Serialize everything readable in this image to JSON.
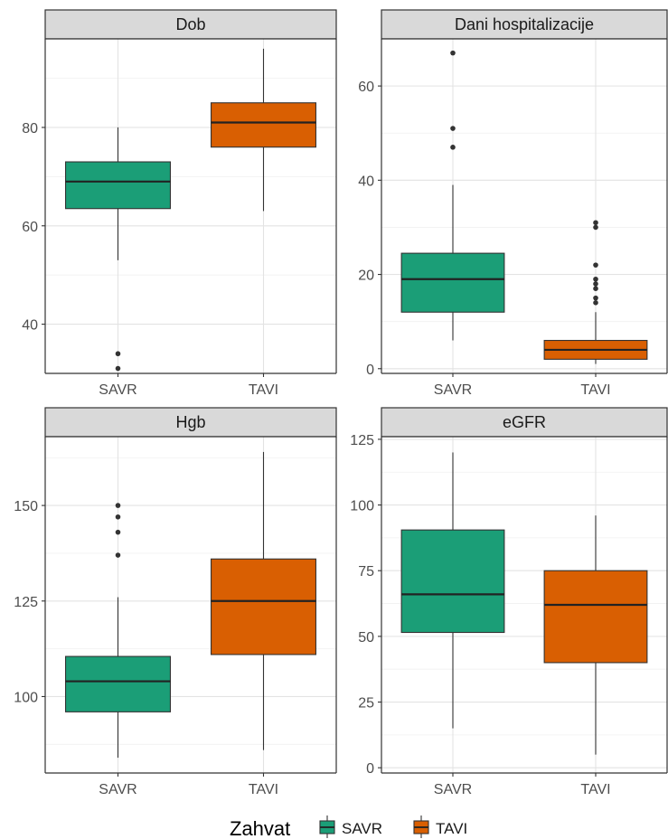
{
  "chart_data": {
    "type": "boxplot",
    "categories": [
      "SAVR",
      "TAVI"
    ],
    "colors": {
      "SAVR": "#1b9e77",
      "TAVI": "#d95f02"
    },
    "legend": {
      "title": "Zahvat",
      "items": [
        "SAVR",
        "TAVI"
      ],
      "position": "bottom"
    },
    "grid": true,
    "panels": [
      {
        "title": "Dob",
        "ylim": [
          30,
          98
        ],
        "yticks": [
          40,
          60,
          80
        ],
        "boxes": [
          {
            "category": "SAVR",
            "min": 53,
            "q1": 63.5,
            "median": 69,
            "q3": 73,
            "max": 80,
            "outliers": [
              34,
              31
            ]
          },
          {
            "category": "TAVI",
            "min": 63,
            "q1": 76,
            "median": 81,
            "q3": 85,
            "max": 96,
            "outliers": []
          }
        ]
      },
      {
        "title": "Dani hospitalizacije",
        "ylim": [
          -1,
          70
        ],
        "yticks": [
          0,
          20,
          40,
          60
        ],
        "boxes": [
          {
            "category": "SAVR",
            "min": 6,
            "q1": 12,
            "median": 19,
            "q3": 24.5,
            "max": 39,
            "outliers": [
              47,
              51,
              67
            ]
          },
          {
            "category": "TAVI",
            "min": 1,
            "q1": 2,
            "median": 4,
            "q3": 6,
            "max": 12,
            "outliers": [
              14,
              15,
              17,
              18,
              19,
              22,
              30,
              31
            ]
          }
        ]
      },
      {
        "title": "Hgb",
        "ylim": [
          80,
          168
        ],
        "yticks": [
          100,
          125,
          150
        ],
        "boxes": [
          {
            "category": "SAVR",
            "min": 84,
            "q1": 96,
            "median": 104,
            "q3": 110.5,
            "max": 126,
            "outliers": [
              137,
              143,
              147,
              150
            ]
          },
          {
            "category": "TAVI",
            "min": 86,
            "q1": 111,
            "median": 125,
            "q3": 136,
            "max": 164,
            "outliers": []
          }
        ]
      },
      {
        "title": "eGFR",
        "ylim": [
          -2,
          126
        ],
        "yticks": [
          0,
          25,
          50,
          75,
          100,
          125
        ],
        "boxes": [
          {
            "category": "SAVR",
            "min": 15,
            "q1": 51.5,
            "median": 66,
            "q3": 90.5,
            "max": 120,
            "outliers": []
          },
          {
            "category": "TAVI",
            "min": 5,
            "q1": 40,
            "median": 62,
            "q3": 75,
            "max": 96,
            "outliers": []
          }
        ]
      }
    ]
  }
}
